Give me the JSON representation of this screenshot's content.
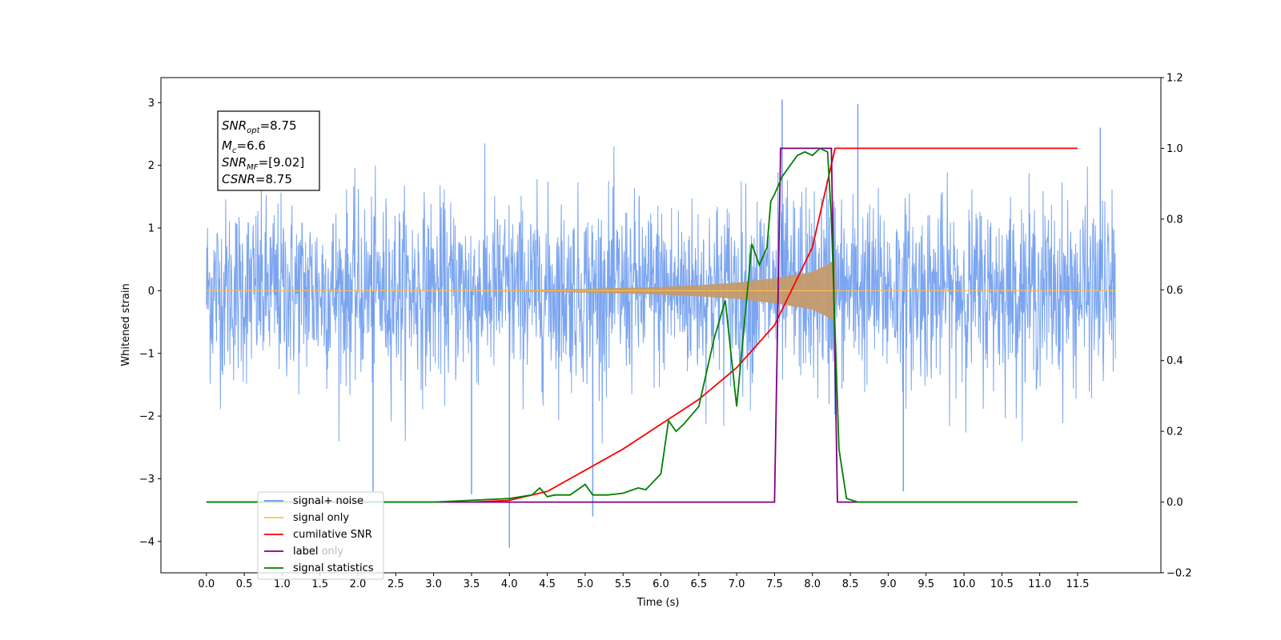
{
  "chart_data": {
    "type": "line",
    "xlabel": "Time (s)",
    "ylabel": "Whitened strain",
    "xlim": [
      -0.6,
      12.6
    ],
    "ylim": [
      -4.5,
      3.4
    ],
    "ylim_right": [
      -0.2,
      1.2
    ],
    "x_ticks": [
      0.0,
      0.5,
      1.0,
      1.5,
      2.0,
      2.5,
      3.0,
      3.5,
      4.0,
      4.5,
      5.0,
      5.5,
      6.0,
      6.5,
      7.0,
      7.5,
      8.0,
      8.5,
      9.0,
      9.5,
      10.0,
      10.5,
      11.0,
      11.5
    ],
    "x_tick_labels": [
      "0.0",
      "0.5",
      "1.0",
      "1.5",
      "2.0",
      "2.5",
      "3.0",
      "3.5",
      "4.0",
      "4.5",
      "5.0",
      "5.5",
      "6.0",
      "6.5",
      "7.0",
      "7.5",
      "8.0",
      "8.5",
      "9.0",
      "9.5",
      "10.0",
      "10.5",
      "11.0",
      "11.5"
    ],
    "y_ticks": [
      3,
      2,
      1,
      0,
      -1,
      -2,
      -3,
      -4
    ],
    "y_tick_labels": [
      "3",
      "2",
      "1",
      "0",
      "−1",
      "−2",
      "−3",
      "−4"
    ],
    "y_right_ticks": [
      1.2,
      1.0,
      0.8,
      0.6,
      0.4,
      0.2,
      0.0,
      -0.2
    ],
    "y_right_tick_labels": [
      "1.2",
      "1.0",
      "0.8",
      "0.6",
      "0.4",
      "0.2",
      "0.0",
      "−0.2"
    ],
    "legend_position": "lower-left",
    "legend": [
      {
        "label": "signal+ noise",
        "color": "#6495ed"
      },
      {
        "label": "signal only",
        "color": "#ffc04d"
      },
      {
        "label": "cumilative SNR",
        "color": "#ff0000"
      },
      {
        "label": "label",
        "color": "#800080"
      },
      {
        "label": "signal statistics",
        "color": "#008000"
      }
    ],
    "ghost_legend_text": [
      "label only",
      "signal statistics"
    ],
    "annotation": {
      "snr_opt": "=8.75",
      "mc": "=6.6",
      "snr_mf": "=[9.02]",
      "csnr": "=8.75"
    },
    "series": [
      {
        "name": "signal+ noise",
        "axis": "left",
        "color": "#6495ed",
        "description": "whitened noise envelope approx ±2.2 with spikes up to 3.0",
        "x_range": [
          0.0,
          12.0
        ],
        "spikes": [
          [
            4.0,
            -4.1
          ],
          [
            7.6,
            3.05
          ],
          [
            2.2,
            -3.2
          ],
          [
            5.1,
            -3.6
          ],
          [
            9.2,
            -3.2
          ],
          [
            8.6,
            2.98
          ],
          [
            11.8,
            2.6
          ],
          [
            3.5,
            -3.25
          ]
        ]
      },
      {
        "name": "signal only",
        "axis": "left",
        "color": "#ffc04d",
        "x_range": [
          0.0,
          12.0
        ],
        "amplitude_envelope": [
          [
            0.0,
            0.0
          ],
          [
            3.0,
            0.005
          ],
          [
            4.0,
            0.01
          ],
          [
            5.0,
            0.03
          ],
          [
            6.0,
            0.06
          ],
          [
            6.5,
            0.09
          ],
          [
            7.0,
            0.13
          ],
          [
            7.5,
            0.2
          ],
          [
            8.0,
            0.3
          ],
          [
            8.2,
            0.42
          ],
          [
            8.3,
            0.5
          ],
          [
            8.32,
            0.0
          ],
          [
            12.0,
            0.0
          ]
        ]
      },
      {
        "name": "cumilative SNR",
        "axis": "right",
        "color": "#ff0000",
        "x": [
          3.5,
          4.0,
          4.5,
          5.0,
          5.5,
          6.0,
          6.5,
          7.0,
          7.5,
          8.0,
          8.3,
          11.5
        ],
        "y": [
          0.0,
          0.005,
          0.03,
          0.09,
          0.15,
          0.22,
          0.29,
          0.38,
          0.5,
          0.72,
          1.0,
          1.0
        ]
      },
      {
        "name": "label",
        "axis": "right",
        "color": "#800080",
        "x": [
          0.0,
          7.5,
          7.58,
          8.25,
          8.33,
          11.5
        ],
        "y": [
          0.0,
          0.0,
          1.0,
          1.0,
          0.0,
          0.0
        ]
      },
      {
        "name": "signal statistics",
        "axis": "right",
        "color": "#008000",
        "x": [
          0.0,
          3.0,
          3.5,
          4.0,
          4.3,
          4.4,
          4.5,
          4.6,
          4.8,
          5.0,
          5.1,
          5.3,
          5.5,
          5.7,
          5.8,
          6.0,
          6.1,
          6.2,
          6.3,
          6.5,
          6.7,
          6.85,
          7.0,
          7.2,
          7.3,
          7.4,
          7.45,
          7.5,
          7.6,
          7.7,
          7.8,
          7.9,
          8.0,
          8.1,
          8.2,
          8.25,
          8.35,
          8.45,
          8.6,
          11.5
        ],
        "y": [
          0.0,
          0.0,
          0.005,
          0.01,
          0.02,
          0.04,
          0.015,
          0.02,
          0.02,
          0.05,
          0.02,
          0.02,
          0.025,
          0.04,
          0.035,
          0.08,
          0.23,
          0.2,
          0.22,
          0.27,
          0.46,
          0.57,
          0.27,
          0.73,
          0.67,
          0.72,
          0.85,
          0.87,
          0.92,
          0.95,
          0.98,
          0.99,
          0.98,
          1.0,
          0.99,
          0.8,
          0.15,
          0.01,
          0.0,
          0.0
        ]
      }
    ]
  }
}
